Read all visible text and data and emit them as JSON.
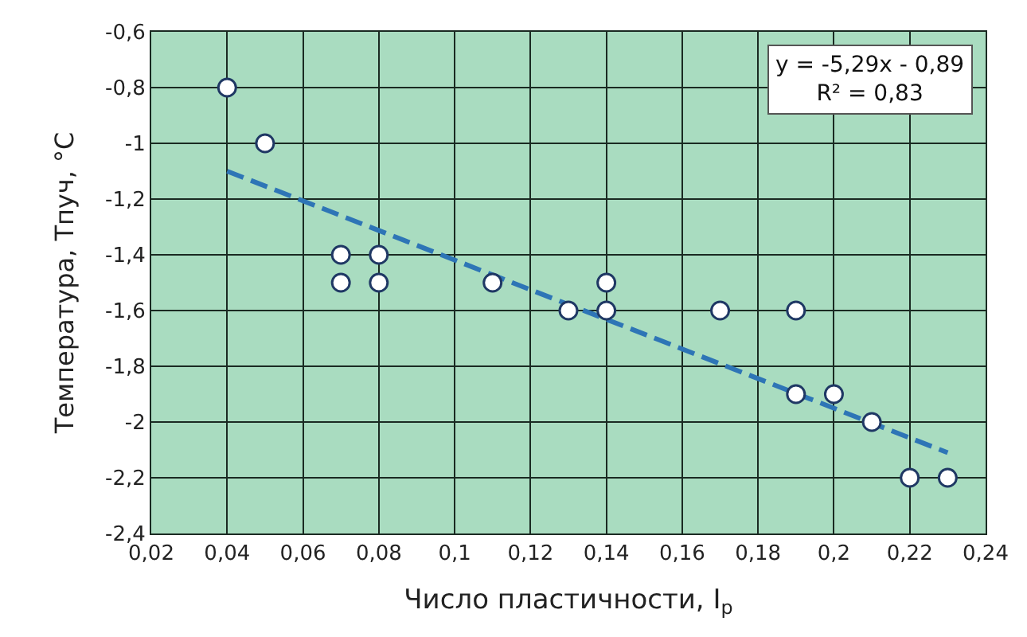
{
  "chart_data": {
    "type": "scatter",
    "xlabel": "Число пластичности, I$_{p}$",
    "ylabel": "Температура, Тпуч, °C",
    "annotations": [
      "y = -5,29x - 0,89\nR² = 0,83"
    ],
    "series": [
      {
        "color": "#ffffff",
        "marker": "circle",
        "x": [
          0.04,
          0.05,
          0.07,
          0.07,
          0.08,
          0.08,
          0.11,
          0.13,
          0.14,
          0.14,
          0.17,
          0.19,
          0.19,
          0.2,
          0.21,
          0.22,
          0.23
        ],
        "values": [
          -0.8,
          -1.0,
          -1.4,
          -1.5,
          -1.4,
          -1.5,
          -1.5,
          -1.6,
          -1.5,
          -1.6,
          -1.6,
          -1.6,
          -1.9,
          -1.9,
          -2.0,
          -2.2,
          -2.2
        ]
      },
      {
        "type": "line",
        "color": "#2e75b6",
        "line_style": "dashed",
        "x": [
          0.04,
          0.23
        ],
        "values": [
          -1.1,
          -2.11
        ]
      }
    ],
    "xlim": [
      0.02,
      0.24
    ],
    "xticks": [
      {
        "value": 0.02,
        "label": "0,02"
      },
      {
        "value": 0.04,
        "label": "0,04"
      },
      {
        "value": 0.06,
        "label": "0,06"
      },
      {
        "value": 0.08,
        "label": "0,08"
      },
      {
        "value": 0.1,
        "label": "0,1"
      },
      {
        "value": 0.12,
        "label": "0,12"
      },
      {
        "value": 0.14,
        "label": "0,14"
      },
      {
        "value": 0.16,
        "label": "0,16"
      },
      {
        "value": 0.18,
        "label": "0,18"
      },
      {
        "value": 0.2,
        "label": "0,2"
      },
      {
        "value": 0.22,
        "label": "0,22"
      },
      {
        "value": 0.24,
        "label": "0,24"
      }
    ],
    "ylim": [
      -2.4,
      -0.6
    ],
    "yticks": [
      {
        "value": -2.4,
        "label": "-2,4"
      },
      {
        "value": -2.2,
        "label": "-2,2"
      },
      {
        "value": -2,
        "label": "-2"
      },
      {
        "value": -1.8,
        "label": "-1,8"
      },
      {
        "value": -1.6,
        "label": "-1,6"
      },
      {
        "value": -1.4,
        "label": "-1,4"
      },
      {
        "value": -1.2,
        "label": "-1,2"
      },
      {
        "value": -1,
        "label": "-1"
      },
      {
        "value": -0.8,
        "label": "-0,8"
      },
      {
        "value": -0.6,
        "label": "-0,6"
      }
    ],
    "grid": true,
    "legend": false
  }
}
